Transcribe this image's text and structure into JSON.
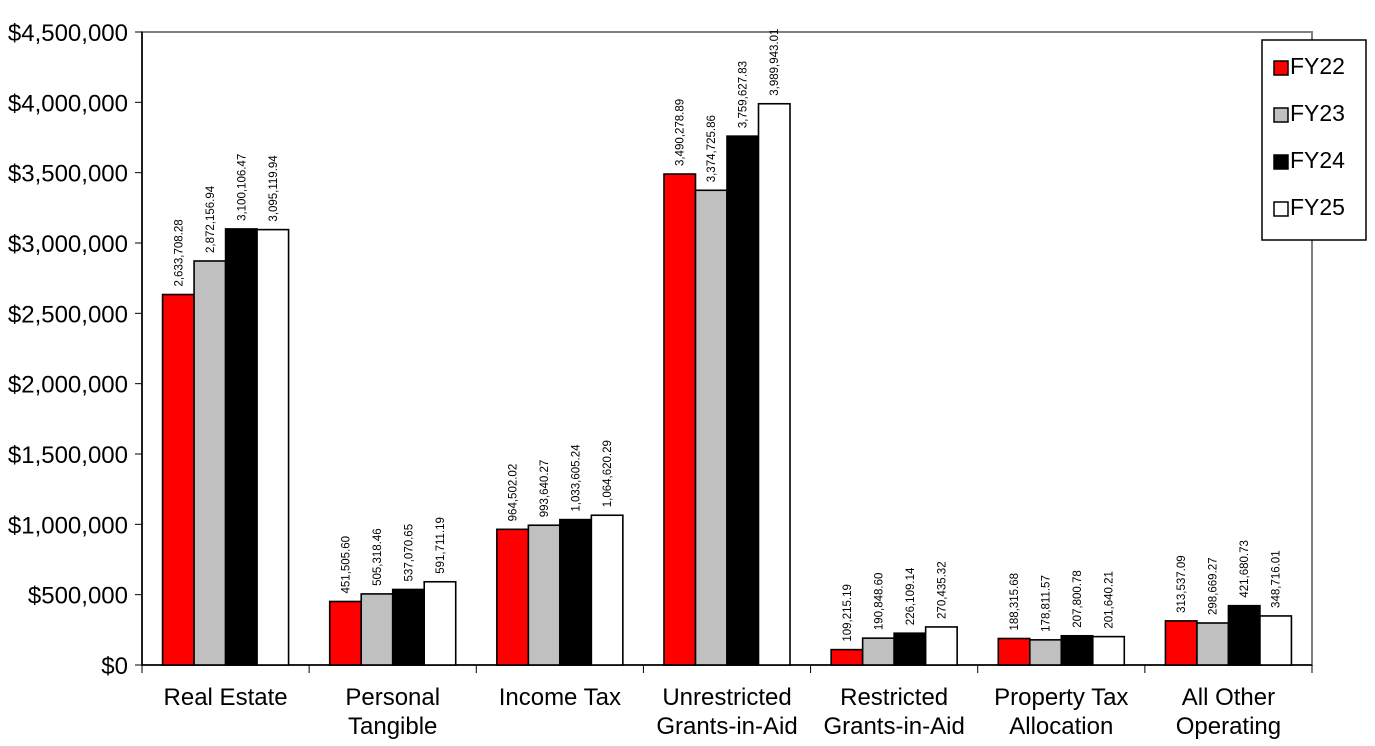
{
  "chart_data": {
    "type": "bar",
    "categories": [
      [
        "Real Estate"
      ],
      [
        "Personal",
        "Tangible"
      ],
      [
        "Income Tax"
      ],
      [
        "Unrestricted",
        "Grants-in-Aid"
      ],
      [
        "Restricted",
        "Grants-in-Aid"
      ],
      [
        "Property Tax",
        "Allocation"
      ],
      [
        "All Other",
        "Operating"
      ]
    ],
    "series": [
      {
        "name": "FY22",
        "color": "#ff0000",
        "values": [
          2633708.28,
          451505.6,
          964502.02,
          3490278.89,
          109215.19,
          188315.68,
          313537.09
        ],
        "labels": [
          "2,633,708.28",
          "451,505.60",
          "964,502.02",
          "3,490,278.89",
          "109,215.19",
          "188,315.68",
          "313,537.09"
        ]
      },
      {
        "name": "FY23",
        "color": "#c0c0c0",
        "values": [
          2872156.94,
          505318.46,
          993640.27,
          3374725.86,
          190848.6,
          178811.57,
          298669.27
        ],
        "labels": [
          "2,872,156.94",
          "505,318.46",
          "993,640.27",
          "3,374,725.86",
          "190,848.60",
          "178,811.57",
          "298,669.27"
        ]
      },
      {
        "name": "FY24",
        "color": "#000000",
        "values": [
          3100106.47,
          537070.65,
          1033605.24,
          3759627.83,
          226109.14,
          207800.78,
          421680.73
        ],
        "labels": [
          "3,100,106.47",
          "537,070.65",
          "1,033,605.24",
          "3,759,627.83",
          "226,109.14",
          "207,800.78",
          "421,680.73"
        ]
      },
      {
        "name": "FY25",
        "color": "#ffffff",
        "values": [
          3095119.94,
          591711.19,
          1064620.29,
          3989943.01,
          270435.32,
          201640.21,
          348716.01
        ],
        "labels": [
          "3,095,119.94",
          "591,711.19",
          "1,064,620.29",
          "3,989,943.01",
          "270,435.32",
          "201,640.21",
          "348,716.01"
        ]
      }
    ],
    "yticks": [
      0,
      500000,
      1000000,
      1500000,
      2000000,
      2500000,
      3000000,
      3500000,
      4000000,
      4500000
    ],
    "ytick_labels": [
      "$0",
      "$500,000",
      "$1,000,000",
      "$1,500,000",
      "$2,000,000",
      "$2,500,000",
      "$3,000,000",
      "$3,500,000",
      "$4,000,000",
      "$4,500,000"
    ],
    "ylim": [
      0,
      4500000
    ],
    "grid": true,
    "legend": "top-right"
  }
}
